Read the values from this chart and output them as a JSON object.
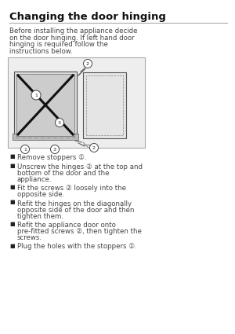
{
  "title": "Changing the door hinging",
  "title_fontsize": 9.5,
  "background_color": "#ffffff",
  "intro_text": "Before installing the appliance decide\non the door hinging. If left hand door\nhinging is required follow the\ninstructions below.",
  "intro_fontsize": 6.2,
  "bullet_items": [
    [
      "Remove stoppers ①."
    ],
    [
      "Unscrew the hinges ② at the top and",
      "bottom of the door and the",
      "appliance."
    ],
    [
      "Fit the screws ② loosely into the",
      "opposite side."
    ],
    [
      "Refit the hinges on the diagonally",
      "opposite side of the door and then",
      "tighten them."
    ],
    [
      "Refit the appliance door onto",
      "pre-fitted screws ②, then tighten the",
      "screws."
    ],
    [
      "Plug the holes with the stoppers ①."
    ]
  ],
  "bullet_fontsize": 6.2,
  "text_color": "#444444",
  "dark_color": "#222222"
}
